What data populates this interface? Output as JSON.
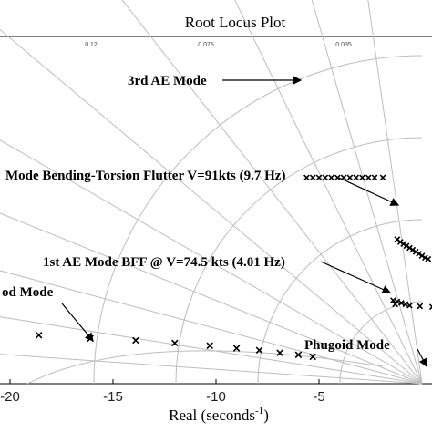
{
  "chart_data": {
    "type": "scatter",
    "title": "Root Locus Plot",
    "xlabel": "Real (seconds",
    "xlabel_sup": "-1",
    "xlabel_close": ")",
    "x_ticks": [
      {
        "value": -20,
        "label": "-20"
      },
      {
        "value": -15,
        "label": "-15"
      },
      {
        "value": -10,
        "label": "-10"
      },
      {
        "value": -5,
        "label": "-5"
      }
    ],
    "damping_labels": [
      {
        "value": 0.12,
        "label": "0.12"
      },
      {
        "value": 0.075,
        "label": "0.075"
      },
      {
        "value": 0.035,
        "label": "0.035"
      }
    ],
    "grid": true,
    "annotations": [
      {
        "id": "ae3",
        "text": "3rd AE Mode"
      },
      {
        "id": "flutter",
        "text": "Mode Bending-Torsion Flutter V=91kts (9.7 Hz)"
      },
      {
        "id": "bff",
        "text": "1st AE Mode BFF @ V=74.5 kts (4.01 Hz)"
      },
      {
        "id": "short",
        "text": "od Mode"
      },
      {
        "id": "phugoid",
        "text": "Phugoid Mode"
      }
    ],
    "series": [
      {
        "id": "ae3",
        "points": [
          {
            "x": -5.6,
            "y": 15.7
          },
          {
            "x": -5.3,
            "y": 15.7
          },
          {
            "x": -5.0,
            "y": 15.7
          },
          {
            "x": -4.7,
            "y": 15.7
          },
          {
            "x": -4.4,
            "y": 15.7
          },
          {
            "x": -4.1,
            "y": 15.7
          },
          {
            "x": -3.8,
            "y": 15.7
          },
          {
            "x": -3.5,
            "y": 15.7
          },
          {
            "x": -3.2,
            "y": 15.7
          },
          {
            "x": -2.9,
            "y": 15.7
          },
          {
            "x": -2.6,
            "y": 15.7
          },
          {
            "x": -2.3,
            "y": 15.7
          },
          {
            "x": -1.9,
            "y": 15.7
          }
        ]
      },
      {
        "id": "flutter",
        "points": [
          {
            "x": -1.2,
            "y": 11.0
          },
          {
            "x": -1.05,
            "y": 10.8
          },
          {
            "x": -0.9,
            "y": 10.65
          },
          {
            "x": -0.75,
            "y": 10.5
          },
          {
            "x": -0.6,
            "y": 10.35
          },
          {
            "x": -0.45,
            "y": 10.2
          },
          {
            "x": -0.3,
            "y": 10.05
          },
          {
            "x": -0.15,
            "y": 9.9
          },
          {
            "x": 0.0,
            "y": 9.75
          },
          {
            "x": 0.15,
            "y": 9.6
          },
          {
            "x": 0.3,
            "y": 9.5
          }
        ]
      },
      {
        "id": "bff",
        "points": [
          {
            "x": -1.4,
            "y": 6.35
          },
          {
            "x": -1.2,
            "y": 6.25
          },
          {
            "x": -1.0,
            "y": 6.15
          },
          {
            "x": -0.8,
            "y": 6.05
          },
          {
            "x": -0.6,
            "y": 5.95
          },
          {
            "x": -1.3,
            "y": 6.05
          },
          {
            "x": -0.1,
            "y": 5.9
          },
          {
            "x": 0.5,
            "y": 5.85
          }
        ]
      },
      {
        "id": "short_period",
        "points": [
          {
            "x": -18.6,
            "y": 3.7
          },
          {
            "x": -16.1,
            "y": 3.45
          },
          {
            "x": -13.9,
            "y": 3.3
          },
          {
            "x": -12.0,
            "y": 3.1
          },
          {
            "x": -10.3,
            "y": 2.9
          },
          {
            "x": -9.0,
            "y": 2.7
          },
          {
            "x": -7.9,
            "y": 2.55
          },
          {
            "x": -6.9,
            "y": 2.35
          },
          {
            "x": -6.0,
            "y": 2.2
          },
          {
            "x": -5.3,
            "y": 2.05
          }
        ]
      }
    ]
  }
}
